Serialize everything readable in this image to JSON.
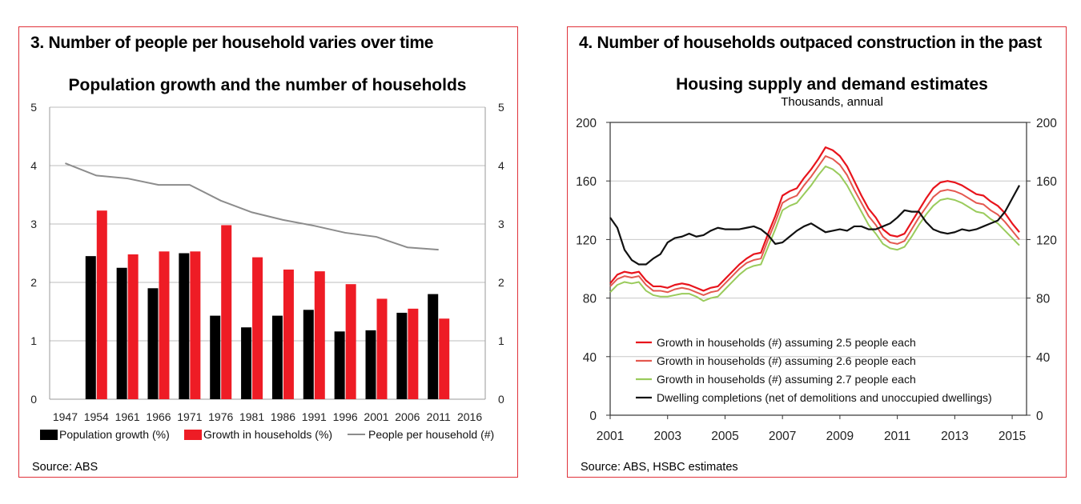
{
  "panel1": {
    "heading": "3. Number of people per household varies over time",
    "source": "Source: ABS"
  },
  "panel2": {
    "heading": "4. Number of households outpaced construction in the past",
    "source": "Source: ABS, HSBC estimates"
  },
  "colors": {
    "border": "#e0323a",
    "black_bar": "#000000",
    "red_bar": "#ee1c25",
    "grey_line": "#8c8c8c",
    "red_line": "#e8141c",
    "salmon_line": "#e4584f",
    "green_line": "#9acb5c",
    "black_line": "#111111"
  },
  "chart_data": [
    {
      "type": "bar",
      "title": "Population growth and the number of households",
      "categories": [
        "1947",
        "1954",
        "1961",
        "1966",
        "1971",
        "1976",
        "1981",
        "1986",
        "1991",
        "1996",
        "2001",
        "2006",
        "2011",
        "2016"
      ],
      "ylim": [
        0,
        5
      ],
      "yticks": [
        "0",
        "1",
        "2",
        "3",
        "4",
        "5"
      ],
      "y2lim": [
        0,
        5
      ],
      "y2ticks": [
        "0",
        "1",
        "2",
        "3",
        "4",
        "5"
      ],
      "grid": true,
      "legend_position": "bottom",
      "series": [
        {
          "name": "Population growth (%)",
          "kind": "bar",
          "values": [
            null,
            2.45,
            2.25,
            1.9,
            2.5,
            1.43,
            1.23,
            1.43,
            1.53,
            1.16,
            1.18,
            1.48,
            1.8,
            null
          ]
        },
        {
          "name": "Growth in households (%)",
          "kind": "bar",
          "values": [
            null,
            3.23,
            2.48,
            2.53,
            2.53,
            2.98,
            2.43,
            2.22,
            2.19,
            1.97,
            1.72,
            1.55,
            1.38,
            null
          ]
        },
        {
          "name": "People per household (#)",
          "kind": "line",
          "values": [
            4.04,
            3.83,
            3.78,
            3.67,
            3.67,
            3.4,
            3.2,
            3.07,
            2.97,
            2.85,
            2.78,
            2.6,
            2.56,
            null
          ]
        }
      ]
    },
    {
      "type": "line",
      "title": "Housing supply and demand estimates",
      "subtitle": "Thousands, annual",
      "xlim": [
        2001,
        2015.5
      ],
      "xticks": [
        "2001",
        "2003",
        "2005",
        "2007",
        "2009",
        "2011",
        "2013",
        "2015"
      ],
      "ylim": [
        0,
        200
      ],
      "yticks": [
        "0",
        "40",
        "80",
        "120",
        "160",
        "200"
      ],
      "y2lim": [
        0,
        200
      ],
      "y2ticks": [
        "0",
        "40",
        "80",
        "120",
        "160",
        "200"
      ],
      "grid": true,
      "legend_position": "bottom-left",
      "series": [
        {
          "name": "Growth in households (#) assuming 2.5 people each",
          "x": [
            2001,
            2001.25,
            2001.5,
            2001.75,
            2002,
            2002.25,
            2002.5,
            2002.75,
            2003,
            2003.25,
            2003.5,
            2003.75,
            2004,
            2004.25,
            2004.5,
            2004.75,
            2005,
            2005.25,
            2005.5,
            2005.75,
            2006,
            2006.25,
            2006.5,
            2006.75,
            2007,
            2007.25,
            2007.5,
            2007.75,
            2008,
            2008.25,
            2008.5,
            2008.75,
            2009,
            2009.25,
            2009.5,
            2009.75,
            2010,
            2010.25,
            2010.5,
            2010.75,
            2011,
            2011.25,
            2011.5,
            2011.75,
            2012,
            2012.25,
            2012.5,
            2012.75,
            2013,
            2013.25,
            2013.5,
            2013.75,
            2014,
            2014.25,
            2014.5,
            2014.75,
            2015,
            2015.25
          ],
          "y": [
            90,
            96,
            98,
            97,
            98,
            92,
            88,
            88,
            87,
            89,
            90,
            89,
            87,
            85,
            87,
            88,
            93,
            98,
            103,
            107,
            110,
            111,
            124,
            136,
            150,
            153,
            155,
            162,
            168,
            175,
            183,
            181,
            177,
            170,
            160,
            150,
            141,
            135,
            127,
            123,
            122,
            124,
            132,
            140,
            148,
            155,
            159,
            160,
            159,
            157,
            154,
            151,
            150,
            146,
            143,
            138,
            131,
            125
          ]
        },
        {
          "name": "Growth in households (#) assuming 2.6 people each",
          "x": [
            2001,
            2001.25,
            2001.5,
            2001.75,
            2002,
            2002.25,
            2002.5,
            2002.75,
            2003,
            2003.25,
            2003.5,
            2003.75,
            2004,
            2004.25,
            2004.5,
            2004.75,
            2005,
            2005.25,
            2005.5,
            2005.75,
            2006,
            2006.25,
            2006.5,
            2006.75,
            2007,
            2007.25,
            2007.5,
            2007.75,
            2008,
            2008.25,
            2008.5,
            2008.75,
            2009,
            2009.25,
            2009.5,
            2009.75,
            2010,
            2010.25,
            2010.5,
            2010.75,
            2011,
            2011.25,
            2011.5,
            2011.75,
            2012,
            2012.25,
            2012.5,
            2012.75,
            2013,
            2013.25,
            2013.5,
            2013.75,
            2014,
            2014.25,
            2014.5,
            2014.75,
            2015,
            2015.25
          ],
          "y": [
            88,
            93,
            95,
            94,
            95,
            89,
            85,
            85,
            84,
            86,
            87,
            86,
            84,
            82,
            84,
            85,
            90,
            95,
            100,
            104,
            106,
            107,
            120,
            132,
            145,
            148,
            150,
            157,
            163,
            170,
            177,
            175,
            171,
            164,
            154,
            145,
            136,
            130,
            122,
            118,
            117,
            119,
            127,
            135,
            142,
            149,
            153,
            154,
            153,
            151,
            148,
            145,
            144,
            140,
            137,
            132,
            126,
            120
          ]
        },
        {
          "name": "Growth in households (#) assuming 2.7 people each",
          "x": [
            2001,
            2001.25,
            2001.5,
            2001.75,
            2002,
            2002.25,
            2002.5,
            2002.75,
            2003,
            2003.25,
            2003.5,
            2003.75,
            2004,
            2004.25,
            2004.5,
            2004.75,
            2005,
            2005.25,
            2005.5,
            2005.75,
            2006,
            2006.25,
            2006.5,
            2006.75,
            2007,
            2007.25,
            2007.5,
            2007.75,
            2008,
            2008.25,
            2008.5,
            2008.75,
            2009,
            2009.25,
            2009.5,
            2009.75,
            2010,
            2010.25,
            2010.5,
            2010.75,
            2011,
            2011.25,
            2011.5,
            2011.75,
            2012,
            2012.25,
            2012.5,
            2012.75,
            2013,
            2013.25,
            2013.5,
            2013.75,
            2014,
            2014.25,
            2014.5,
            2014.75,
            2015,
            2015.25
          ],
          "y": [
            84,
            89,
            91,
            90,
            91,
            85,
            82,
            81,
            81,
            82,
            83,
            83,
            81,
            78,
            80,
            81,
            86,
            91,
            96,
            100,
            102,
            103,
            115,
            127,
            140,
            143,
            145,
            151,
            157,
            164,
            170,
            168,
            164,
            157,
            148,
            139,
            130,
            124,
            117,
            114,
            113,
            115,
            122,
            130,
            137,
            143,
            147,
            148,
            147,
            145,
            142,
            139,
            138,
            134,
            131,
            126,
            121,
            116
          ]
        },
        {
          "name": "Dwelling completions (net of demolitions and unoccupied dwellings)",
          "x": [
            2001,
            2001.25,
            2001.5,
            2001.75,
            2002,
            2002.25,
            2002.5,
            2002.75,
            2003,
            2003.25,
            2003.5,
            2003.75,
            2004,
            2004.25,
            2004.5,
            2004.75,
            2005,
            2005.25,
            2005.5,
            2005.75,
            2006,
            2006.25,
            2006.5,
            2006.75,
            2007,
            2007.25,
            2007.5,
            2007.75,
            2008,
            2008.25,
            2008.5,
            2008.75,
            2009,
            2009.25,
            2009.5,
            2009.75,
            2010,
            2010.25,
            2010.5,
            2010.75,
            2011,
            2011.25,
            2011.5,
            2011.75,
            2012,
            2012.25,
            2012.5,
            2012.75,
            2013,
            2013.25,
            2013.5,
            2013.75,
            2014,
            2014.25,
            2014.5,
            2014.75,
            2015,
            2015.25
          ],
          "y": [
            135,
            128,
            113,
            106,
            103,
            103,
            107,
            110,
            118,
            121,
            122,
            124,
            122,
            123,
            126,
            128,
            127,
            127,
            127,
            128,
            129,
            127,
            123,
            117,
            118,
            122,
            126,
            129,
            131,
            128,
            125,
            126,
            127,
            126,
            129,
            129,
            127,
            127,
            129,
            131,
            135,
            140,
            139,
            139,
            132,
            127,
            125,
            124,
            125,
            127,
            126,
            127,
            129,
            131,
            133,
            139,
            148,
            157
          ]
        }
      ]
    }
  ]
}
